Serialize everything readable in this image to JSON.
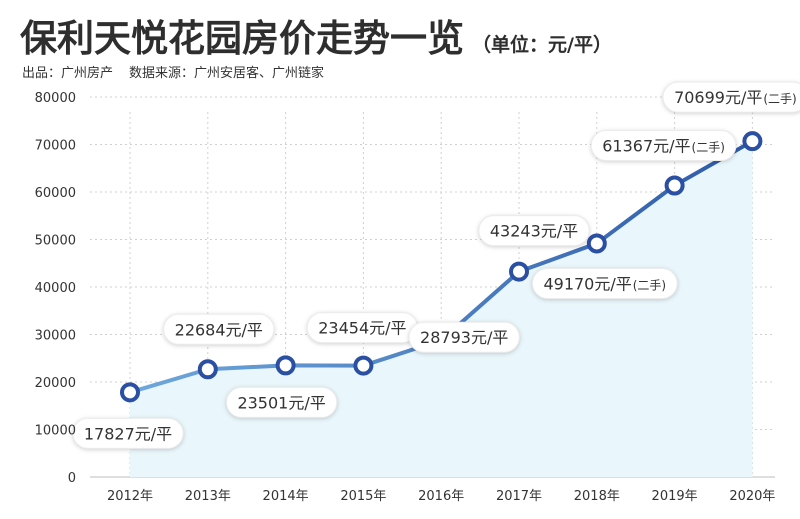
{
  "header": {
    "title": "保利天悦花园房价走势一览",
    "unit": "（单位：元/平）",
    "publisher": "出品：广州房产",
    "data_source": "数据来源：广州安居客、广州链家"
  },
  "colors": {
    "line_start": "#6fa8dc",
    "line_end": "#2d5aa8",
    "marker_stroke": "#2b4fa2",
    "area_fill": "#e9f6fb",
    "grid": "#d0d0d0"
  },
  "chart_data": {
    "type": "line",
    "x": [
      "2012年",
      "2013年",
      "2014年",
      "2015年",
      "2016年",
      "2017年",
      "2018年",
      "2019年",
      "2020年"
    ],
    "values": [
      17827,
      22684,
      23501,
      23454,
      28793,
      43243,
      49170,
      61367,
      70699
    ],
    "ylim": [
      0,
      80000
    ],
    "yticks": [
      "0",
      "10000",
      "20000",
      "30000",
      "40000",
      "50000",
      "60000",
      "70000",
      "80000"
    ],
    "grid": true,
    "data_labels": [
      {
        "main": "17827元/平",
        "suffix": ""
      },
      {
        "main": "22684元/平",
        "suffix": ""
      },
      {
        "main": "23501元/平",
        "suffix": ""
      },
      {
        "main": "23454元/平",
        "suffix": ""
      },
      {
        "main": "28793元/平",
        "suffix": ""
      },
      {
        "main": "43243元/平",
        "suffix": ""
      },
      {
        "main": "49170元/平",
        "suffix": "(二手)"
      },
      {
        "main": "61367元/平",
        "suffix": "(二手)"
      },
      {
        "main": "70699元/平",
        "suffix": "(二手)"
      }
    ]
  }
}
